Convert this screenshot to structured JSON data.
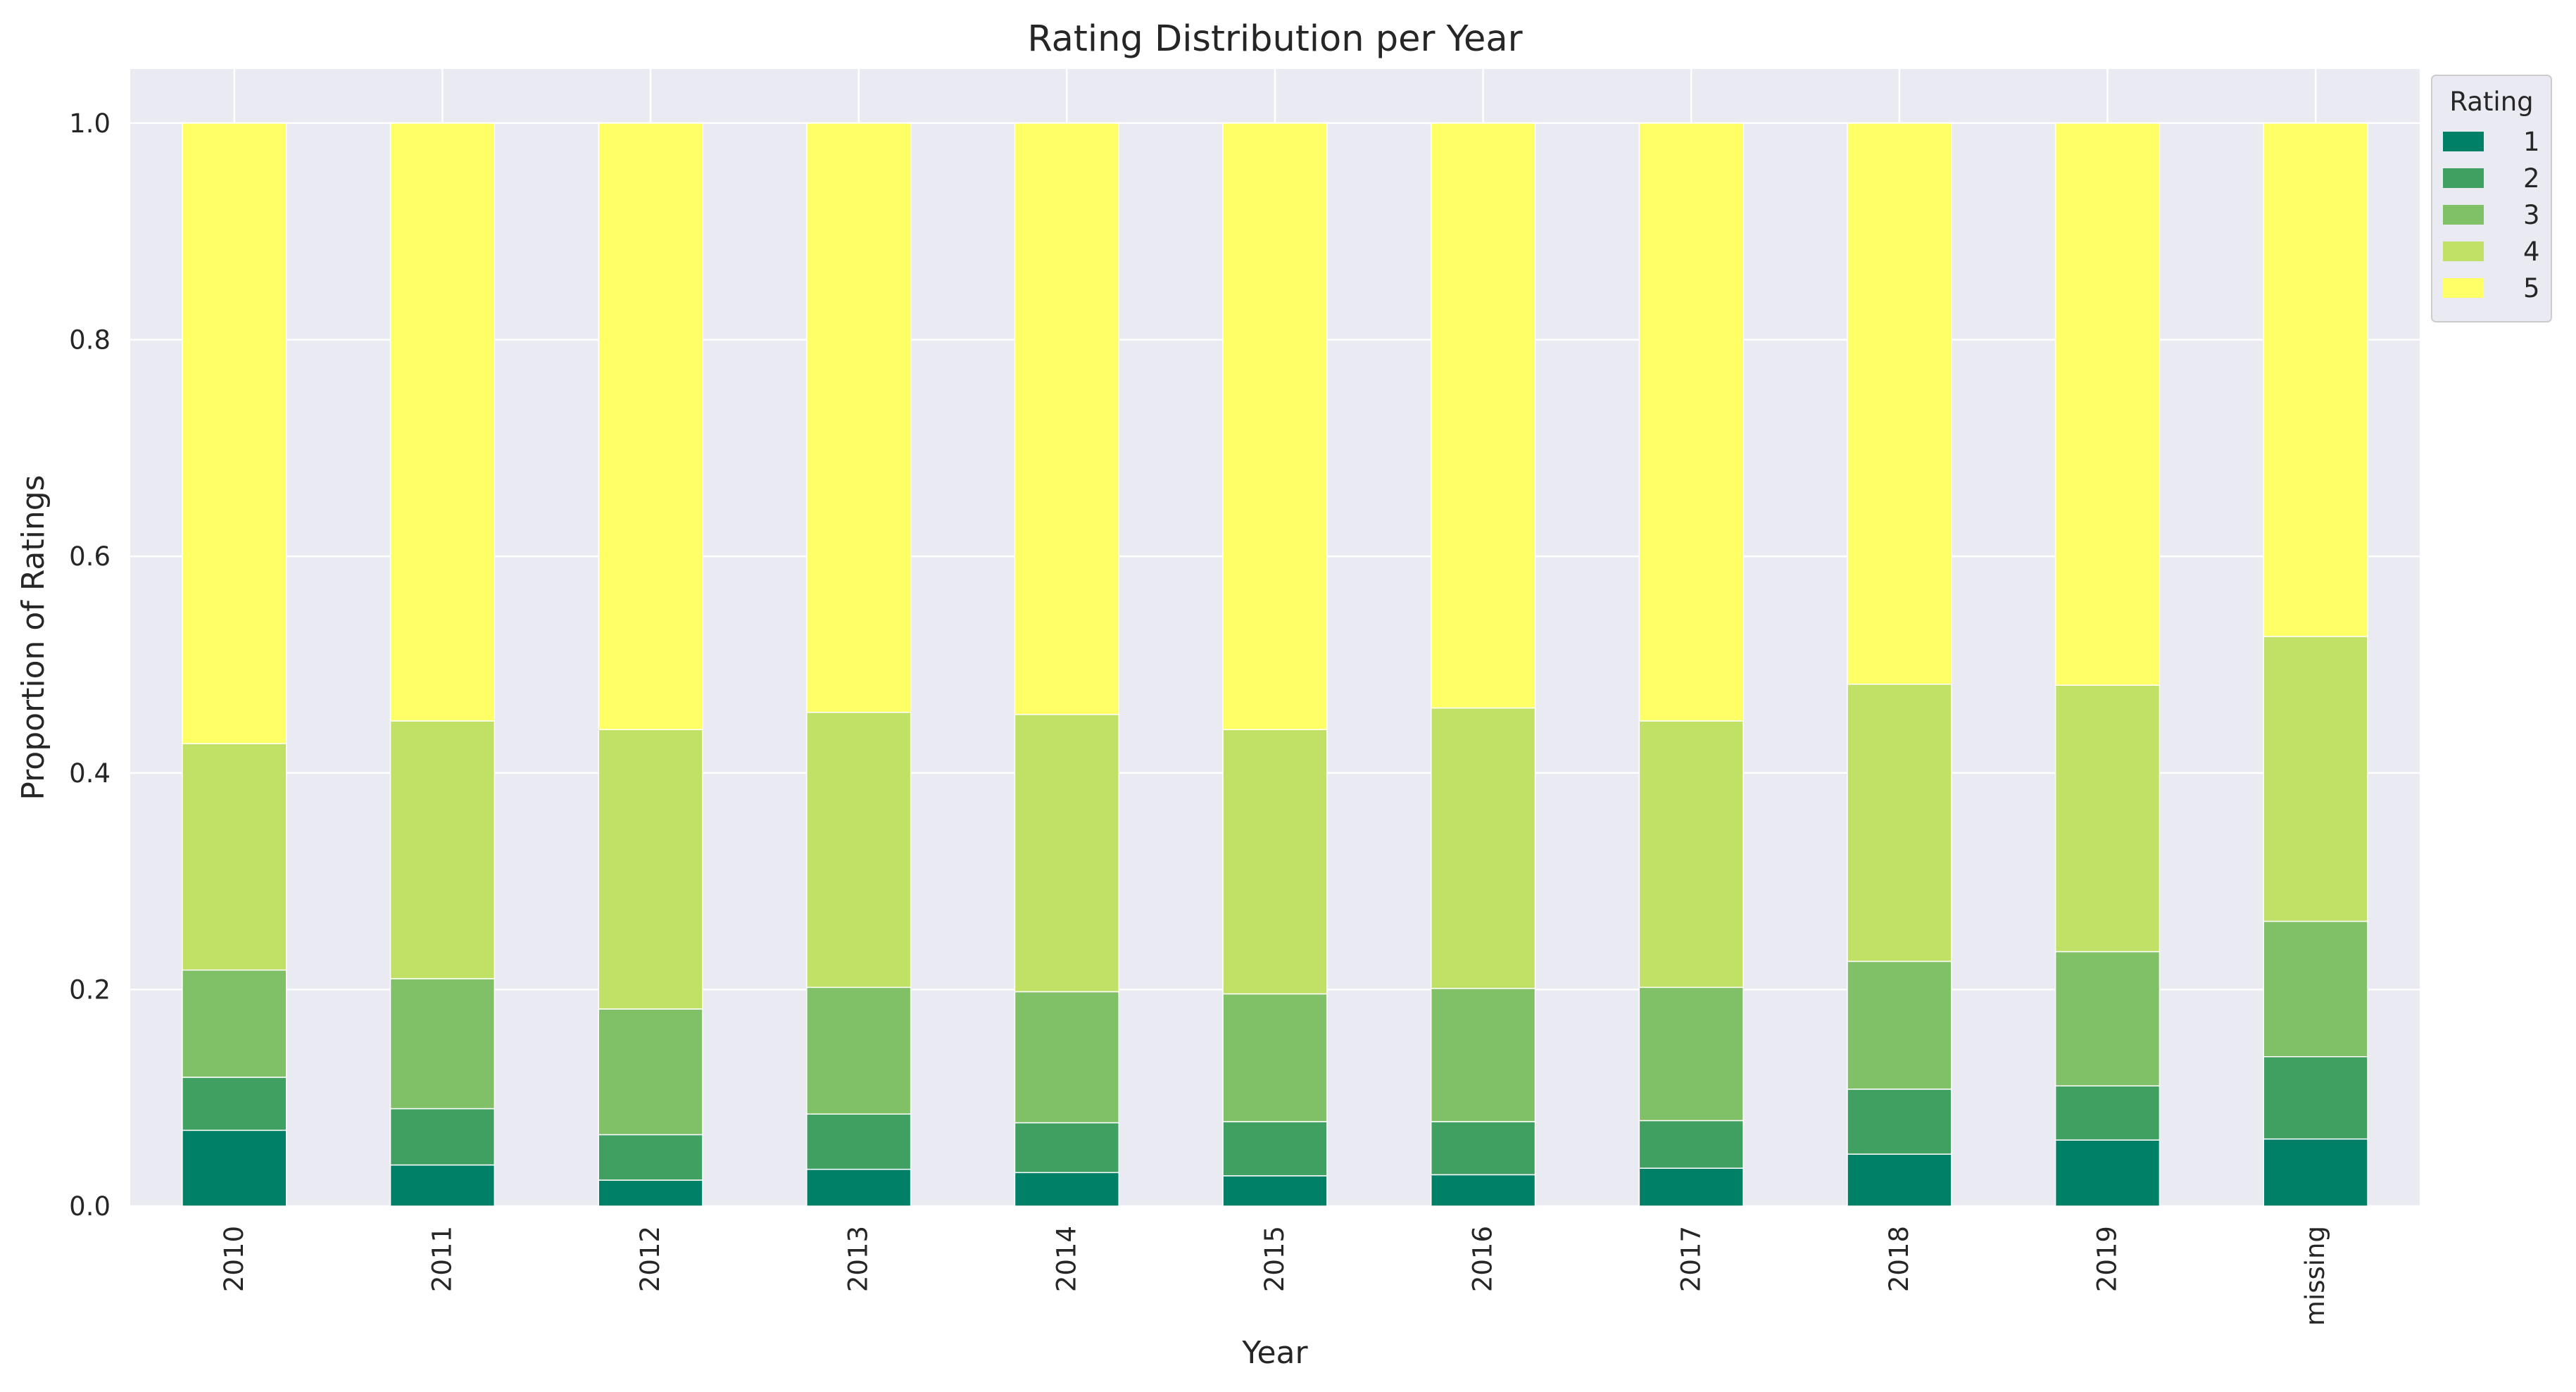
{
  "chart_data": {
    "type": "bar",
    "stacked": true,
    "title": "Rating Distribution per Year",
    "xlabel": "Year",
    "ylabel": "Proportion of Ratings",
    "ylim": [
      0,
      1.05
    ],
    "yticks": [
      "0.0",
      "0.2",
      "0.4",
      "0.6",
      "0.8",
      "1.0"
    ],
    "categories": [
      "2010",
      "2011",
      "2012",
      "2013",
      "2014",
      "2015",
      "2016",
      "2017",
      "2018",
      "2019",
      "missing"
    ],
    "legend": {
      "title": "Rating",
      "position": "upper-right-outside"
    },
    "grid": true,
    "series": [
      {
        "name": "1",
        "color": "#008066",
        "values": [
          0.07,
          0.038,
          0.024,
          0.034,
          0.031,
          0.028,
          0.029,
          0.035,
          0.048,
          0.061,
          0.062
        ]
      },
      {
        "name": "2",
        "color": "#40a062",
        "values": [
          0.049,
          0.052,
          0.042,
          0.051,
          0.046,
          0.05,
          0.049,
          0.044,
          0.06,
          0.05,
          0.076
        ]
      },
      {
        "name": "3",
        "color": "#80c066",
        "values": [
          0.099,
          0.12,
          0.116,
          0.117,
          0.121,
          0.118,
          0.123,
          0.123,
          0.118,
          0.124,
          0.125
        ]
      },
      {
        "name": "4",
        "color": "#c0e066",
        "values": [
          0.209,
          0.238,
          0.258,
          0.254,
          0.256,
          0.244,
          0.259,
          0.246,
          0.256,
          0.246,
          0.263
        ]
      },
      {
        "name": "5",
        "color": "#ffff66",
        "values": [
          0.573,
          0.552,
          0.56,
          0.544,
          0.546,
          0.56,
          0.54,
          0.552,
          0.518,
          0.519,
          0.474
        ]
      }
    ]
  }
}
